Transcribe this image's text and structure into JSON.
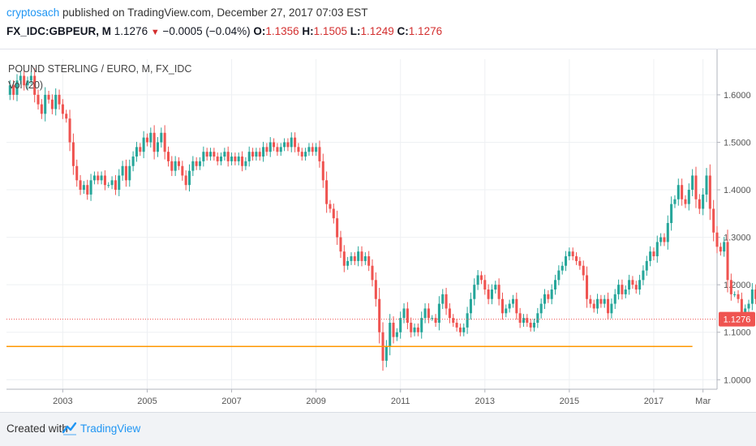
{
  "header": {
    "author": "cryptosach",
    "published": "published on TradingView.com, December 27, 2017 07:03 EST",
    "symbol": "FX_IDC:GBPEUR, M",
    "last": "1.1276",
    "change": "−0.0005 (−0.04%)",
    "open_label": "O:",
    "open": "1.1356",
    "high_label": "H:",
    "high": "1.1505",
    "low_label": "L:",
    "low": "1.1249",
    "close_label": "C:",
    "close": "1.1276"
  },
  "footer": {
    "created_with": "Created with",
    "brand": "TradingView"
  },
  "colors": {
    "up": "#26a69a",
    "down": "#ef5350",
    "line_orange": "#ff9800",
    "price_line": "#ef5350",
    "grid": "#eef0f3",
    "link": "#2196f3"
  },
  "chart_data": {
    "type": "candlestick",
    "title": "POUND STERLING / EURO, M, FX_IDC",
    "indicator": "Vol (20)",
    "x_tick_labels": [
      "2003",
      "2005",
      "2007",
      "2009",
      "2011",
      "2013",
      "2015",
      "2017",
      "Mar"
    ],
    "x_tick_dates": [
      "2003-01",
      "2005-01",
      "2007-01",
      "2009-01",
      "2011-01",
      "2013-01",
      "2015-01",
      "2017-01",
      "2018-03"
    ],
    "x_range": [
      "2001-09",
      "2018-07"
    ],
    "ylim": [
      0.98,
      1.675
    ],
    "y_ticks": [
      1.0,
      1.1,
      1.2,
      1.3,
      1.4,
      1.5,
      1.6
    ],
    "y_tick_labels": [
      "1.0000",
      "1.1000",
      "1.2000",
      "1.3000",
      "1.4000",
      "1.5000",
      "1.6000"
    ],
    "current_price": 1.1276,
    "current_price_label": "1.1276",
    "horizontal_line": 1.07,
    "horizontal_line_range": [
      "2001-09",
      "2017-12"
    ],
    "grid": true,
    "series_closes_from": "2001-10",
    "start_open": 1.6,
    "closes": [
      1.62,
      1.6,
      1.63,
      1.64,
      1.62,
      1.63,
      1.64,
      1.6,
      1.58,
      1.56,
      1.6,
      1.59,
      1.57,
      1.6,
      1.58,
      1.56,
      1.55,
      1.5,
      1.45,
      1.42,
      1.4,
      1.41,
      1.39,
      1.42,
      1.43,
      1.42,
      1.43,
      1.41,
      1.41,
      1.42,
      1.4,
      1.43,
      1.45,
      1.42,
      1.45,
      1.47,
      1.49,
      1.48,
      1.51,
      1.5,
      1.52,
      1.48,
      1.5,
      1.52,
      1.48,
      1.46,
      1.44,
      1.46,
      1.45,
      1.43,
      1.41,
      1.44,
      1.46,
      1.45,
      1.46,
      1.48,
      1.47,
      1.48,
      1.47,
      1.46,
      1.47,
      1.48,
      1.46,
      1.47,
      1.46,
      1.47,
      1.45,
      1.46,
      1.48,
      1.47,
      1.48,
      1.47,
      1.49,
      1.48,
      1.5,
      1.49,
      1.48,
      1.49,
      1.5,
      1.49,
      1.51,
      1.49,
      1.48,
      1.47,
      1.48,
      1.49,
      1.48,
      1.49,
      1.46,
      1.42,
      1.37,
      1.36,
      1.34,
      1.3,
      1.27,
      1.24,
      1.25,
      1.26,
      1.25,
      1.27,
      1.25,
      1.26,
      1.24,
      1.21,
      1.17,
      1.1,
      1.04,
      1.07,
      1.12,
      1.09,
      1.1,
      1.13,
      1.15,
      1.12,
      1.1,
      1.11,
      1.1,
      1.13,
      1.15,
      1.13,
      1.13,
      1.12,
      1.16,
      1.18,
      1.15,
      1.13,
      1.12,
      1.11,
      1.1,
      1.11,
      1.14,
      1.17,
      1.2,
      1.22,
      1.21,
      1.19,
      1.17,
      1.19,
      1.2,
      1.17,
      1.14,
      1.15,
      1.16,
      1.17,
      1.14,
      1.12,
      1.13,
      1.12,
      1.11,
      1.12,
      1.14,
      1.16,
      1.18,
      1.17,
      1.19,
      1.21,
      1.23,
      1.24,
      1.26,
      1.27,
      1.26,
      1.25,
      1.24,
      1.22,
      1.17,
      1.16,
      1.15,
      1.17,
      1.16,
      1.17,
      1.14,
      1.16,
      1.18,
      1.2,
      1.18,
      1.19,
      1.21,
      1.2,
      1.19,
      1.21,
      1.23,
      1.25,
      1.27,
      1.26,
      1.29,
      1.3,
      1.29,
      1.33,
      1.37,
      1.38,
      1.41,
      1.38,
      1.37,
      1.4,
      1.43,
      1.38,
      1.36,
      1.39,
      1.43,
      1.36,
      1.31,
      1.28,
      1.27,
      1.29,
      1.21,
      1.18,
      1.18,
      1.17,
      1.14,
      1.15,
      1.16,
      1.19,
      1.17,
      1.18,
      1.16,
      1.19,
      1.16,
      1.14,
      1.11,
      1.13,
      1.08,
      1.12,
      1.14,
      1.13,
      1.14,
      1.1276
    ]
  }
}
